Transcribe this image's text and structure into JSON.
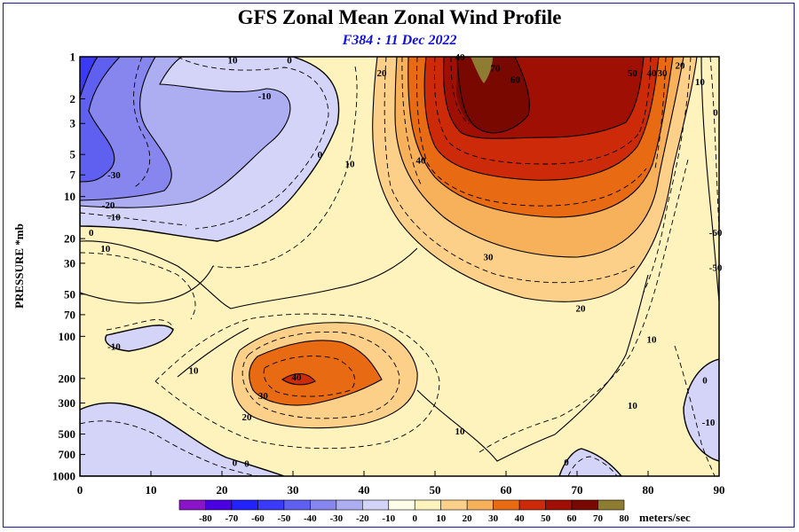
{
  "chart_data": {
    "type": "heatmap",
    "title": "GFS Zonal Mean Zonal Wind Profile",
    "subtitle": "F384 : 11 Dec 2022",
    "xlabel": "",
    "ylabel": "PRESSURE *mb",
    "xlim": [
      0,
      90
    ],
    "ylim": [
      1000,
      1
    ],
    "y_scale": "log",
    "x_ticks": [
      0,
      10,
      20,
      30,
      40,
      50,
      60,
      70,
      80,
      90
    ],
    "y_ticks": [
      1,
      2,
      3,
      5,
      7,
      10,
      20,
      30,
      50,
      70,
      100,
      200,
      300,
      500,
      700,
      1000
    ],
    "colorbar": {
      "levels": [
        -80,
        -70,
        -60,
        -50,
        -40,
        -30,
        -20,
        -10,
        0,
        10,
        20,
        30,
        40,
        50,
        60,
        70,
        80
      ],
      "colors": [
        "#8a14c8",
        "#4a00e0",
        "#2222ff",
        "#3a3af8",
        "#6060f0",
        "#8686ee",
        "#adadf2",
        "#d4d4f8",
        "#fefee8",
        "#fef3bc",
        "#fdd08a",
        "#f7b15a",
        "#e86a12",
        "#cc2a08",
        "#a00f04",
        "#780800",
        "#8e7c32"
      ],
      "units_label": "meters/sec"
    },
    "regions": [
      {
        "name": "tropical easterlies upper stratosphere",
        "value": -30
      },
      {
        "name": "subtropical easterly near 3-10 mb",
        "value": -20
      },
      {
        "name": "polar night jet",
        "value": 70
      },
      {
        "name": "subtropical jet",
        "value": 40
      },
      {
        "name": "near-surface easterlies low latitudes",
        "value": -10
      },
      {
        "name": "near-surface polar easterlies",
        "value": -10
      }
    ],
    "contour_labels": [
      {
        "text": "10",
        "lat": 21.5,
        "p": 1.05
      },
      {
        "text": "0",
        "lat": 29.5,
        "p": 1.05
      },
      {
        "text": "-10",
        "lat": 26,
        "p": 1.9
      },
      {
        "text": "0",
        "lat": 33.8,
        "p": 5.0
      },
      {
        "text": "10",
        "lat": 38,
        "p": 5.8
      },
      {
        "text": "20",
        "lat": 42.5,
        "p": 1.3
      },
      {
        "text": "-30",
        "lat": 4.8,
        "p": 7.0
      },
      {
        "text": "-20",
        "lat": 4.0,
        "p": 11.5
      },
      {
        "text": "-10",
        "lat": 4.8,
        "p": 14.0
      },
      {
        "text": "0",
        "lat": 1.6,
        "p": 18.0
      },
      {
        "text": "10",
        "lat": 3.6,
        "p": 23.5
      },
      {
        "text": "40",
        "lat": 53.5,
        "p": 1.0
      },
      {
        "text": "70",
        "lat": 58.5,
        "p": 1.2
      },
      {
        "text": "60",
        "lat": 61.3,
        "p": 1.45
      },
      {
        "text": "50",
        "lat": 77.8,
        "p": 1.3
      },
      {
        "text": "40",
        "lat": 80.5,
        "p": 1.3
      },
      {
        "text": "30",
        "lat": 82.0,
        "p": 1.3
      },
      {
        "text": "20",
        "lat": 84.5,
        "p": 1.15
      },
      {
        "text": "10",
        "lat": 87.3,
        "p": 1.5
      },
      {
        "text": "40",
        "lat": 48.0,
        "p": 5.5
      },
      {
        "text": "30",
        "lat": 57.5,
        "p": 27.0
      },
      {
        "text": "20",
        "lat": 70.5,
        "p": 63.0
      },
      {
        "text": "10",
        "lat": 80.5,
        "p": 105.0
      },
      {
        "text": "0",
        "lat": 89.5,
        "p": 2.5
      },
      {
        "text": "-60",
        "lat": 89.5,
        "p": 18.0
      },
      {
        "text": "-50",
        "lat": 89.5,
        "p": 32.0
      },
      {
        "text": "-10",
        "lat": 4.8,
        "p": 118.0
      },
      {
        "text": "10",
        "lat": 16.0,
        "p": 175.0
      },
      {
        "text": "40",
        "lat": 30.5,
        "p": 195.0
      },
      {
        "text": "30",
        "lat": 25.8,
        "p": 265.0
      },
      {
        "text": "20",
        "lat": 23.5,
        "p": 375.0
      },
      {
        "text": "10",
        "lat": 53.5,
        "p": 475.0
      },
      {
        "text": "10",
        "lat": 77.8,
        "p": 310.0
      },
      {
        "text": "0",
        "lat": 88.0,
        "p": 205.0
      },
      {
        "text": "-10",
        "lat": 88.5,
        "p": 410.0
      },
      {
        "text": "0",
        "lat": 68.5,
        "p": 790.0
      },
      {
        "text": "0",
        "lat": 21.8,
        "p": 800.0
      },
      {
        "text": "0",
        "lat": 23.5,
        "p": 810.0
      }
    ]
  }
}
